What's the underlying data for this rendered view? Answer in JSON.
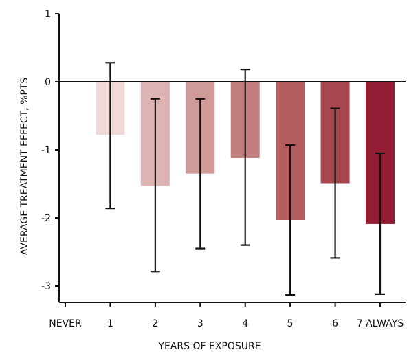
{
  "chart_data": {
    "type": "bar",
    "xlabel": "YEARS OF EXPOSURE",
    "ylabel": "AVERAGE TREATMENT EFFECT, %PTS",
    "categories": [
      "NEVER",
      "1",
      "2",
      "3",
      "4",
      "5",
      "6",
      "7 ALWAYS"
    ],
    "values": [
      null,
      -0.78,
      -1.53,
      -1.35,
      -1.12,
      -2.03,
      -1.49,
      -2.09
    ],
    "error_low": [
      null,
      -1.86,
      -2.79,
      -2.45,
      -2.4,
      -3.13,
      -2.59,
      -3.12
    ],
    "error_high": [
      null,
      0.28,
      -0.25,
      -0.25,
      0.18,
      -0.93,
      -0.39,
      -1.05
    ],
    "bar_colors": [
      "#ffffff",
      "#efdad9",
      "#deb4b3",
      "#d09a99",
      "#c27d7d",
      "#b25e5e",
      "#a5474c",
      "#941d36"
    ],
    "ylim": [
      -3.3,
      1
    ],
    "yticks": [
      1,
      0,
      -1,
      -2,
      -3
    ],
    "ytick_labels": [
      "1",
      "0",
      "-1",
      "-2",
      "-3"
    ],
    "zero_line": true,
    "grid": false,
    "legend": "none"
  }
}
